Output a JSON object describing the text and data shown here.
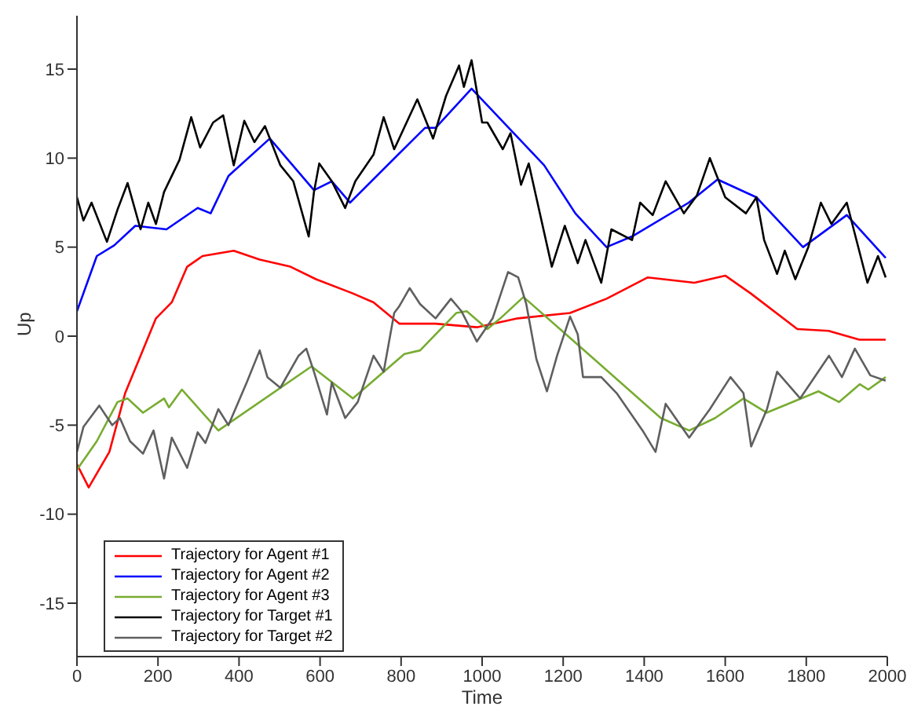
{
  "chart_data": {
    "type": "line",
    "xlabel": "Time",
    "ylabel": "Up",
    "xlim": [
      0,
      2000
    ],
    "xticks": [
      0,
      200,
      400,
      600,
      800,
      1000,
      1200,
      1400,
      1600,
      1800,
      2000
    ],
    "ylim": [
      -18,
      18
    ],
    "yticks": [
      -15,
      -10,
      -5,
      0,
      5,
      10,
      15
    ],
    "grid": false,
    "legend": "bottom left",
    "marker": "none",
    "line_style": "solid",
    "series": [
      {
        "name": "Trajectory for Agent #1",
        "color": "#ff0000",
        "x": [
          0,
          29,
          80,
          119,
          157,
          195,
          234,
          272,
          310,
          387,
          451,
          527,
          590,
          681,
          732,
          796,
          885,
          987,
          1088,
          1217,
          1307,
          1409,
          1524,
          1600,
          1663,
          1778,
          1855,
          1931,
          1996
        ],
        "values": [
          -7.2,
          -8.5,
          -6.5,
          -3.2,
          -1.1,
          1.0,
          1.9,
          3.9,
          4.5,
          4.8,
          4.3,
          3.9,
          3.2,
          2.4,
          1.9,
          0.7,
          0.7,
          0.5,
          1.0,
          1.3,
          2.1,
          3.3,
          3.0,
          3.4,
          2.4,
          0.4,
          0.3,
          -0.2,
          -0.2
        ]
      },
      {
        "name": "Trajectory for Agent #2",
        "color": "#0000ff",
        "x": [
          0,
          49,
          92,
          144,
          221,
          298,
          330,
          374,
          476,
          585,
          629,
          674,
          859,
          885,
          974,
          1153,
          1230,
          1307,
          1370,
          1510,
          1581,
          1677,
          1792,
          1900,
          1996
        ],
        "values": [
          1.4,
          4.5,
          5.1,
          6.2,
          6.0,
          7.2,
          6.9,
          9.0,
          11.1,
          8.2,
          8.7,
          7.5,
          11.7,
          11.7,
          13.9,
          9.6,
          6.9,
          5.0,
          5.6,
          7.5,
          8.8,
          7.8,
          5.0,
          6.8,
          4.4
        ]
      },
      {
        "name": "Trajectory for Agent #3",
        "color": "#77ac30",
        "x": [
          0,
          49,
          100,
          125,
          163,
          215,
          227,
          259,
          349,
          579,
          681,
          808,
          847,
          936,
          962,
          1013,
          1045,
          1102,
          1217,
          1441,
          1511,
          1575,
          1645,
          1702,
          1830,
          1881,
          1932,
          1953,
          1996
        ],
        "values": [
          -7.5,
          -5.9,
          -3.7,
          -3.5,
          -4.3,
          -3.5,
          -4.0,
          -3.0,
          -5.3,
          -1.7,
          -3.5,
          -1.0,
          -0.8,
          1.3,
          1.4,
          0.4,
          1.0,
          2.2,
          -0.1,
          -4.6,
          -5.3,
          -4.6,
          -3.5,
          -4.3,
          -3.1,
          -3.7,
          -2.7,
          -3.0,
          -2.3
        ]
      },
      {
        "name": "Trajectory for Target #1",
        "color": "#000000",
        "x": [
          0,
          16,
          36,
          74,
          100,
          125,
          157,
          176,
          195,
          215,
          253,
          282,
          304,
          336,
          361,
          387,
          413,
          438,
          464,
          502,
          534,
          572,
          585,
          598,
          629,
          662,
          687,
          732,
          757,
          783,
          840,
          879,
          911,
          943,
          955,
          974,
          1000,
          1013,
          1051,
          1070,
          1096,
          1115,
          1172,
          1204,
          1236,
          1255,
          1294,
          1319,
          1370,
          1390,
          1421,
          1453,
          1498,
          1530,
          1562,
          1600,
          1651,
          1677,
          1696,
          1728,
          1747,
          1773,
          1805,
          1836,
          1862,
          1900,
          1951,
          1977,
          1996
        ],
        "values": [
          7.8,
          6.5,
          7.5,
          5.3,
          7.1,
          8.6,
          6.0,
          7.5,
          6.3,
          8.1,
          9.9,
          12.3,
          10.6,
          12.0,
          12.4,
          9.6,
          12.1,
          10.9,
          11.8,
          9.6,
          8.7,
          5.6,
          8.1,
          9.7,
          8.7,
          7.2,
          8.7,
          10.2,
          12.3,
          10.5,
          13.3,
          11.1,
          13.5,
          15.2,
          14.0,
          15.5,
          12.0,
          12.0,
          10.5,
          11.4,
          8.5,
          9.7,
          3.9,
          6.2,
          4.1,
          5.4,
          3.0,
          6.0,
          5.4,
          7.5,
          6.8,
          8.7,
          6.9,
          7.9,
          10.0,
          7.8,
          6.9,
          7.8,
          5.4,
          3.5,
          4.8,
          3.2,
          5.0,
          7.5,
          6.3,
          7.5,
          3.0,
          4.5,
          3.3
        ]
      },
      {
        "name": "Trajectory for Target #2",
        "color": "#5f5f5f",
        "x": [
          0,
          16,
          55,
          87,
          106,
          131,
          163,
          189,
          215,
          234,
          272,
          298,
          317,
          349,
          374,
          419,
          451,
          470,
          502,
          547,
          566,
          585,
          617,
          629,
          662,
          693,
          732,
          757,
          783,
          796,
          821,
          847,
          885,
          923,
          949,
          987,
          1026,
          1064,
          1089,
          1109,
          1134,
          1160,
          1185,
          1217,
          1236,
          1249,
          1294,
          1332,
          1396,
          1428,
          1453,
          1511,
          1562,
          1613,
          1645,
          1664,
          1703,
          1728,
          1785,
          1856,
          1888,
          1920,
          1958,
          1996
        ],
        "values": [
          -6.5,
          -5.1,
          -3.9,
          -5.0,
          -4.6,
          -5.9,
          -6.6,
          -5.3,
          -8.0,
          -5.7,
          -7.4,
          -5.4,
          -6.0,
          -4.1,
          -5.0,
          -2.6,
          -0.8,
          -2.3,
          -2.9,
          -1.1,
          -0.7,
          -2.0,
          -4.4,
          -2.6,
          -4.6,
          -3.7,
          -1.1,
          -2.0,
          1.3,
          1.7,
          2.7,
          1.8,
          1.0,
          2.1,
          1.4,
          -0.3,
          1.0,
          3.6,
          3.3,
          1.8,
          -1.3,
          -3.1,
          -1.1,
          1.1,
          0.1,
          -2.3,
          -2.3,
          -3.2,
          -5.3,
          -6.5,
          -3.8,
          -5.7,
          -4.1,
          -2.3,
          -3.2,
          -6.2,
          -4.1,
          -2.0,
          -3.5,
          -1.1,
          -2.3,
          -0.7,
          -2.2,
          -2.5
        ]
      }
    ]
  }
}
